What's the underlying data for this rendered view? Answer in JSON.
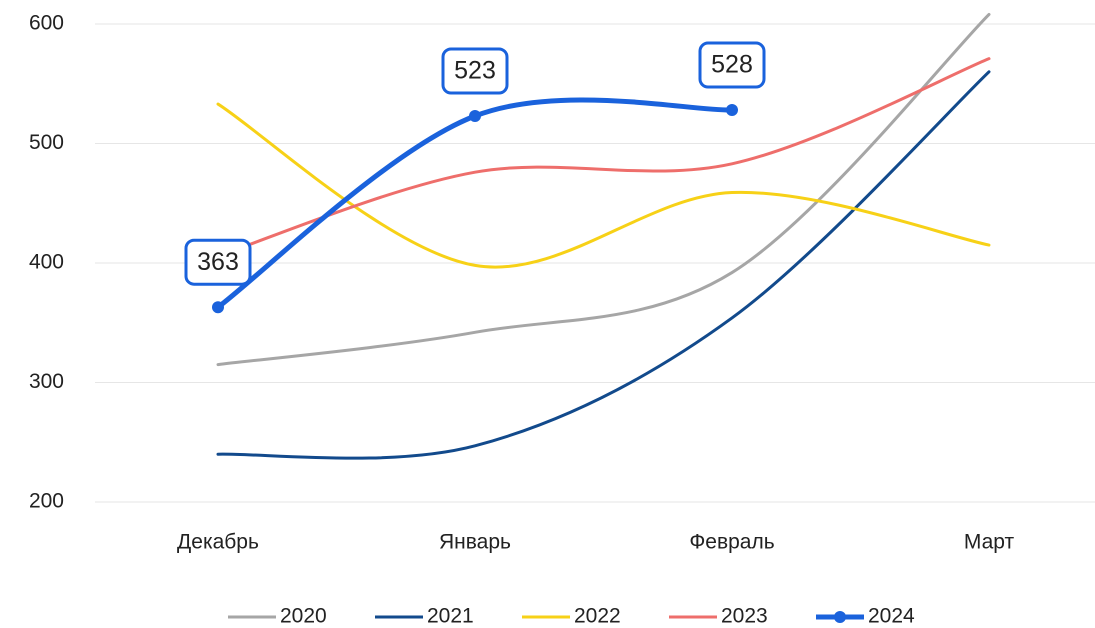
{
  "chart_data": {
    "type": "line",
    "categories": [
      "Декабрь",
      "Январь",
      "Февраль",
      "Март"
    ],
    "series": [
      {
        "name": "2020",
        "color": "#a6a6a6",
        "values": [
          315,
          342,
          392,
          608
        ]
      },
      {
        "name": "2021",
        "color": "#124a8c",
        "values": [
          240,
          247,
          354,
          560
        ]
      },
      {
        "name": "2022",
        "color": "#f7d117",
        "values": [
          533,
          398,
          459,
          415
        ]
      },
      {
        "name": "2023",
        "color": "#ee6e6b",
        "values": [
          406,
          476,
          483,
          571
        ]
      },
      {
        "name": "2024",
        "color": "#1a62dc",
        "values": [
          363,
          523,
          528,
          null
        ],
        "markers": true,
        "data_labels": true
      }
    ],
    "ylim": [
      200,
      600
    ],
    "yticks": [
      200,
      300,
      400,
      500,
      600
    ],
    "grid": true,
    "smooth": true,
    "legend": "bottom"
  }
}
